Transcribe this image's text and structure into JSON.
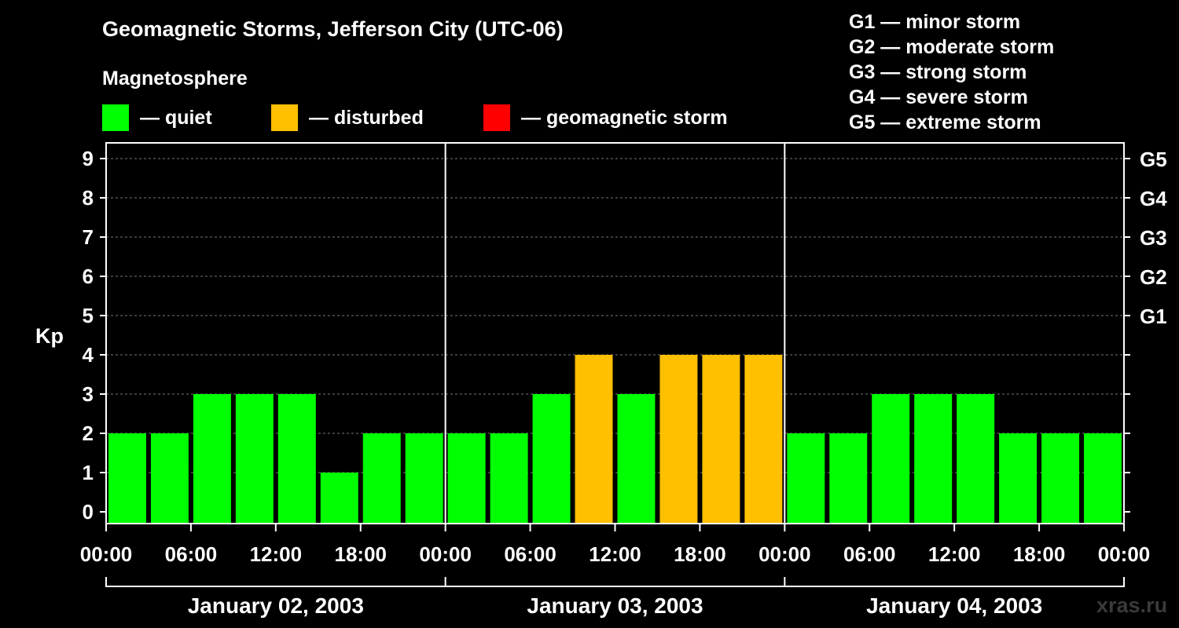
{
  "chart_data": {
    "type": "bar",
    "title": "Geomagnetic Storms, Jefferson City (UTC-06)",
    "subtitle": "Magnetosphere",
    "ylabel": "Kp",
    "ylim": [
      0,
      9
    ],
    "yticks": [
      "0",
      "1",
      "2",
      "3",
      "4",
      "5",
      "6",
      "7",
      "8",
      "9"
    ],
    "g_levels": [
      {
        "label": "G1",
        "kp": 5
      },
      {
        "label": "G2",
        "kp": 6
      },
      {
        "label": "G3",
        "kp": 7
      },
      {
        "label": "G4",
        "kp": 8
      },
      {
        "label": "G5",
        "kp": 9
      }
    ],
    "x_tick_labels": [
      "00:00",
      "06:00",
      "12:00",
      "18:00",
      "00:00",
      "06:00",
      "12:00",
      "18:00",
      "00:00",
      "06:00",
      "12:00",
      "18:00",
      "00:00"
    ],
    "days": [
      "January 02, 2003",
      "January 03, 2003",
      "January 04, 2003"
    ],
    "interval_hours": 3,
    "values": [
      2,
      2,
      3,
      3,
      3,
      1,
      2,
      2,
      2,
      2,
      3,
      4,
      3,
      4,
      4,
      4,
      2,
      2,
      3,
      3,
      3,
      2,
      2,
      2
    ],
    "status": [
      "quiet",
      "quiet",
      "quiet",
      "quiet",
      "quiet",
      "quiet",
      "quiet",
      "quiet",
      "quiet",
      "quiet",
      "quiet",
      "disturbed",
      "quiet",
      "disturbed",
      "disturbed",
      "disturbed",
      "quiet",
      "quiet",
      "quiet",
      "quiet",
      "quiet",
      "quiet",
      "quiet",
      "quiet"
    ],
    "colors": {
      "quiet": "#00ff00",
      "disturbed": "#ffc000",
      "storm": "#ff0000"
    }
  },
  "legend": {
    "quiet": "— quiet",
    "disturbed": "— disturbed",
    "storm": "— geomagnetic storm"
  },
  "g_legend": [
    "G1 — minor storm",
    "G2 — moderate storm",
    "G3 — strong storm",
    "G4 — severe storm",
    "G5 — extreme storm"
  ],
  "watermark": "xras.ru"
}
